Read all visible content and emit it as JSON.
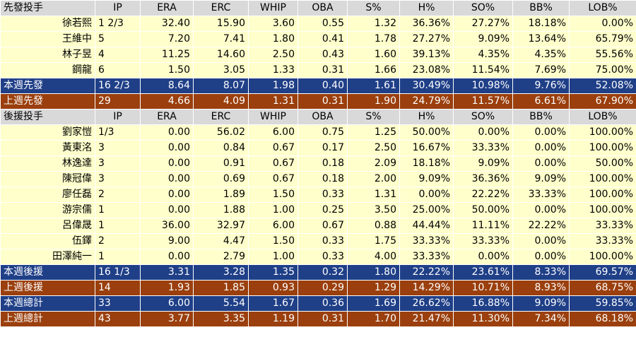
{
  "starters_header": [
    "先發投手",
    "IP",
    "ERA",
    "ERC",
    "WHIP",
    "OBA",
    "S%",
    "H%",
    "SO%",
    "BB%",
    "LOB%"
  ],
  "starters": [
    [
      "徐若熙",
      "1 2/3",
      "32.40",
      "15.90",
      "3.60",
      "0.55",
      "1.32",
      "36.36%",
      "27.27%",
      "18.18%",
      "0.00%"
    ],
    [
      "王維中",
      "5",
      "7.20",
      "7.41",
      "1.80",
      "0.41",
      "1.78",
      "27.27%",
      "9.09%",
      "13.64%",
      "65.79%"
    ],
    [
      "林子昱",
      "4",
      "11.25",
      "14.60",
      "2.50",
      "0.43",
      "1.60",
      "39.13%",
      "4.35%",
      "4.35%",
      "55.56%"
    ],
    [
      "鋼龍",
      "6",
      "1.50",
      "3.05",
      "1.33",
      "0.31",
      "1.66",
      "23.08%",
      "11.54%",
      "7.69%",
      "75.00%"
    ]
  ],
  "starters_week": [
    "本週先發",
    "16 2/3",
    "8.64",
    "8.07",
    "1.98",
    "0.40",
    "1.61",
    "30.49%",
    "10.98%",
    "9.76%",
    "52.08%"
  ],
  "starters_last": [
    "上週先發",
    "29",
    "4.66",
    "4.09",
    "1.31",
    "0.31",
    "1.90",
    "24.79%",
    "11.57%",
    "6.61%",
    "67.90%"
  ],
  "relievers_header": [
    "後援投手",
    "IP",
    "ERA",
    "ERC",
    "WHIP",
    "OBA",
    "S%",
    "H%",
    "SO%",
    "BB%",
    "LOB%"
  ],
  "relievers": [
    [
      "劉家愷",
      "1/3",
      "0.00",
      "56.02",
      "6.00",
      "0.75",
      "1.25",
      "50.00%",
      "0.00%",
      "0.00%",
      "100.00%"
    ],
    [
      "黃東洺",
      "3",
      "0.00",
      "0.84",
      "0.67",
      "0.17",
      "2.50",
      "16.67%",
      "33.33%",
      "0.00%",
      "100.00%"
    ],
    [
      "林逸達",
      "3",
      "0.00",
      "0.91",
      "0.67",
      "0.18",
      "2.09",
      "18.18%",
      "9.09%",
      "0.00%",
      "50.00%"
    ],
    [
      "陳冠偉",
      "3",
      "0.00",
      "0.69",
      "0.67",
      "0.18",
      "2.00",
      "9.09%",
      "36.36%",
      "9.09%",
      "100.00%"
    ],
    [
      "廖任磊",
      "2",
      "0.00",
      "1.89",
      "1.50",
      "0.33",
      "1.31",
      "0.00%",
      "22.22%",
      "33.33%",
      "100.00%"
    ],
    [
      "游宗儒",
      "1",
      "0.00",
      "1.88",
      "1.00",
      "0.25",
      "3.50",
      "25.00%",
      "50.00%",
      "0.00%",
      "100.00%"
    ],
    [
      "呂偉晟",
      "1",
      "36.00",
      "32.97",
      "6.00",
      "0.67",
      "0.88",
      "44.44%",
      "11.11%",
      "22.22%",
      "33.33%"
    ],
    [
      "伍鐸",
      "2",
      "9.00",
      "4.47",
      "1.50",
      "0.33",
      "1.75",
      "33.33%",
      "33.33%",
      "0.00%",
      "33.33%"
    ],
    [
      "田澤純一",
      "1",
      "0.00",
      "2.79",
      "1.00",
      "0.33",
      "4.00",
      "33.33%",
      "0.00%",
      "0.00%",
      "100.00%"
    ]
  ],
  "relievers_week": [
    "本週後援",
    "16 1/3",
    "3.31",
    "3.28",
    "1.35",
    "0.32",
    "1.80",
    "22.22%",
    "23.61%",
    "8.33%",
    "69.57%"
  ],
  "relievers_last": [
    "上週後援",
    "14",
    "1.93",
    "1.85",
    "0.93",
    "0.29",
    "1.29",
    "14.29%",
    "10.71%",
    "8.93%",
    "68.75%"
  ],
  "total_week": [
    "本週總計",
    "33",
    "6.00",
    "5.54",
    "1.67",
    "0.36",
    "1.69",
    "26.62%",
    "16.88%",
    "9.09%",
    "59.85%"
  ],
  "total_last": [
    "上週總計",
    "43",
    "3.77",
    "3.35",
    "1.19",
    "0.31",
    "1.70",
    "21.47%",
    "11.30%",
    "7.34%",
    "68.18%"
  ],
  "colors": {
    "header_bg": "#d9d9d9",
    "player_bg": "#ffffcc",
    "week_bg": "#1f3f87",
    "last_bg": "#9a3f0d"
  }
}
